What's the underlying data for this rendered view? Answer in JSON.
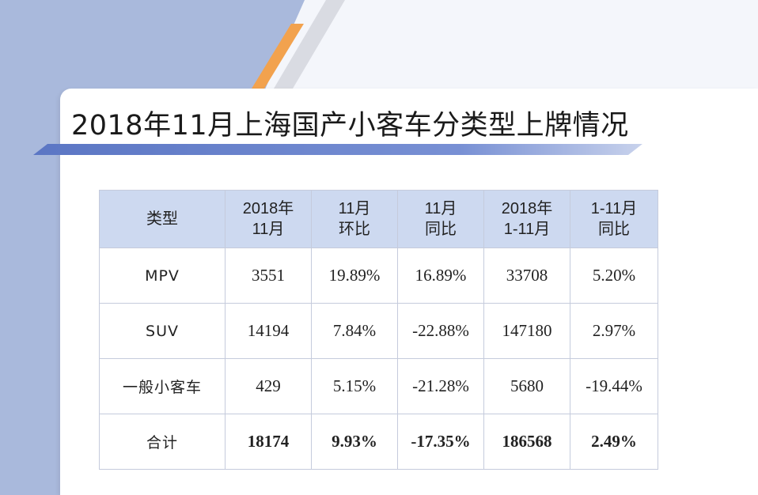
{
  "title": "2018年11月上海国产小客车分类型上牌情况",
  "table": {
    "headers": [
      [
        "类型"
      ],
      [
        "2018年",
        "11月"
      ],
      [
        "11月",
        "环比"
      ],
      [
        "11月",
        "同比"
      ],
      [
        "2018年",
        "1-11月"
      ],
      [
        "1-11月",
        "同比"
      ]
    ],
    "rows": [
      [
        "MPV",
        "3551",
        "19.89%",
        "16.89%",
        "33708",
        "5.20%"
      ],
      [
        "SUV",
        "14194",
        "7.84%",
        "-22.88%",
        "147180",
        "2.97%"
      ],
      [
        "一般小客车",
        "429",
        "5.15%",
        "-21.28%",
        "5680",
        "-19.44%"
      ],
      [
        "合计",
        "18174",
        "9.93%",
        "-17.35%",
        "186568",
        "2.49%"
      ]
    ]
  },
  "colors": {
    "background_blue": "#a9b9dc",
    "header_fill": "#cdd9f0",
    "accent_orange": "#f2a24e",
    "underline_blue": "#5b76c4"
  }
}
